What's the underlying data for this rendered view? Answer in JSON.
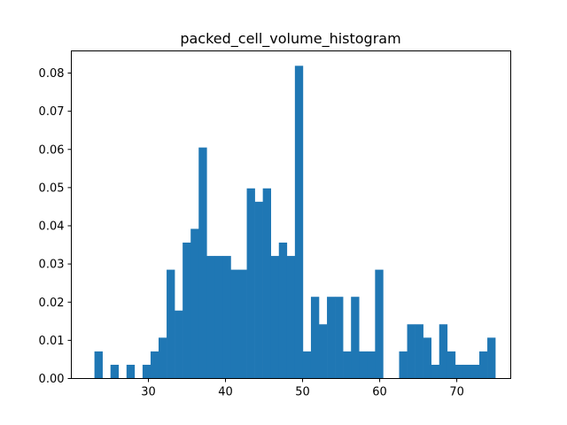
{
  "chart_data": {
    "type": "bar",
    "title": "packed_cell_volume_histogram",
    "xlabel": "",
    "ylabel": "",
    "xlim": [
      20,
      77
    ],
    "ylim": [
      0,
      0.0858
    ],
    "x_ticks": [
      30,
      40,
      50,
      60,
      70
    ],
    "y_ticks": [
      0.0,
      0.01,
      0.02,
      0.03,
      0.04,
      0.05,
      0.06,
      0.07,
      0.08
    ],
    "x_tick_labels": [
      "30",
      "40",
      "50",
      "60",
      "70"
    ],
    "y_tick_labels": [
      "0.00",
      "0.01",
      "0.02",
      "0.03",
      "0.04",
      "0.05",
      "0.06",
      "0.07",
      "0.08"
    ],
    "bar_color": "#1f77b4",
    "grid": false,
    "bin_edges": [
      23.0,
      24.04,
      25.08,
      26.12,
      27.16,
      28.2,
      29.24,
      30.28,
      31.32,
      32.36,
      33.4,
      34.44,
      35.48,
      36.52,
      37.56,
      38.6,
      39.64,
      40.68,
      41.72,
      42.76,
      43.8,
      44.84,
      45.88,
      46.92,
      47.96,
      49.0,
      50.04,
      51.08,
      52.12,
      53.16,
      54.2,
      55.24,
      56.28,
      57.32,
      58.36,
      59.4,
      60.44,
      61.48,
      62.52,
      63.56,
      64.6,
      65.64,
      66.68,
      67.72,
      68.76,
      69.8,
      70.84,
      71.88,
      72.92,
      73.96,
      75.0
    ],
    "values": [
      0.0071,
      0.0,
      0.0036,
      0.0,
      0.0036,
      0.0,
      0.0036,
      0.0071,
      0.0107,
      0.0285,
      0.0178,
      0.0356,
      0.0392,
      0.0605,
      0.0321,
      0.0321,
      0.0321,
      0.0285,
      0.0285,
      0.0498,
      0.0463,
      0.0498,
      0.0321,
      0.0356,
      0.0321,
      0.0819,
      0.0071,
      0.0214,
      0.0142,
      0.0214,
      0.0214,
      0.0071,
      0.0214,
      0.0071,
      0.0071,
      0.0285,
      0.0,
      0.0,
      0.0071,
      0.0142,
      0.0142,
      0.0107,
      0.0036,
      0.0142,
      0.0071,
      0.0036,
      0.0036,
      0.0036,
      0.0071,
      0.0107
    ]
  }
}
